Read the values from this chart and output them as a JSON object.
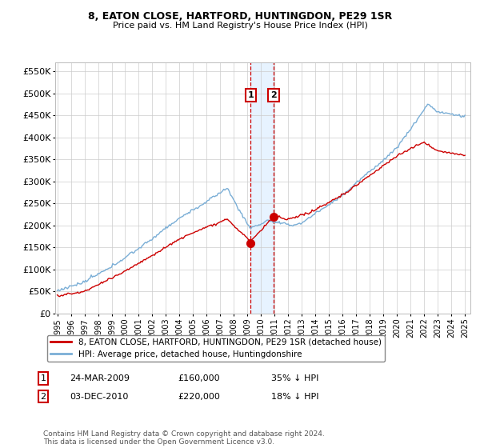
{
  "title1": "8, EATON CLOSE, HARTFORD, HUNTINGDON, PE29 1SR",
  "title2": "Price paid vs. HM Land Registry's House Price Index (HPI)",
  "legend_red": "8, EATON CLOSE, HARTFORD, HUNTINGDON, PE29 1SR (detached house)",
  "legend_blue": "HPI: Average price, detached house, Huntingdonshire",
  "transaction1_date": "24-MAR-2009",
  "transaction1_price": 160000,
  "transaction1_label": "35% ↓ HPI",
  "transaction2_date": "03-DEC-2010",
  "transaction2_price": 220000,
  "transaction2_label": "18% ↓ HPI",
  "footnote": "Contains HM Land Registry data © Crown copyright and database right 2024.\nThis data is licensed under the Open Government Licence v3.0.",
  "ylim": [
    0,
    570000
  ],
  "yticks": [
    0,
    50000,
    100000,
    150000,
    200000,
    250000,
    300000,
    350000,
    400000,
    450000,
    500000,
    550000
  ],
  "background_color": "#ffffff",
  "grid_color": "#cccccc",
  "red_color": "#cc0000",
  "blue_color": "#7aaed6",
  "vline_color": "#cc0000",
  "shade_color": "#ddeeff",
  "box_color": "#cc0000",
  "t1_year": 2009.228,
  "t2_year": 2010.922
}
